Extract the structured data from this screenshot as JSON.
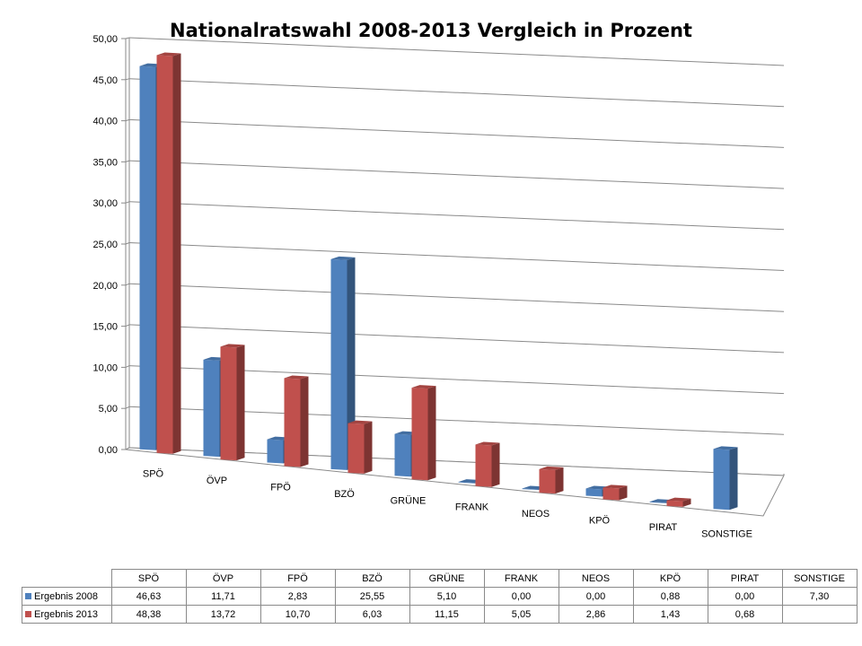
{
  "chart_data": {
    "type": "bar",
    "title": "Nationalratswahl 2008-2013 Vergleich in Prozent",
    "categories": [
      "SPÖ",
      "ÖVP",
      "FPÖ",
      "BZÖ",
      "GRÜNE",
      "FRANK",
      "NEOS",
      "KPÖ",
      "PIRAT",
      "SONSTIGE"
    ],
    "y_ticks": [
      "0,00",
      "5,00",
      "10,00",
      "15,00",
      "20,00",
      "25,00",
      "30,00",
      "35,00",
      "40,00",
      "45,00",
      "50,00"
    ],
    "ylim": [
      0,
      50
    ],
    "grid": true,
    "three_d": true,
    "legend": "data-table",
    "series": [
      {
        "name": "Ergebnis 2008",
        "color": "#4F81BD",
        "values": [
          46.63,
          11.71,
          2.83,
          25.55,
          5.1,
          0.0,
          0.0,
          0.88,
          0.0,
          7.3
        ],
        "labels": [
          "46,63",
          "11,71",
          "2,83",
          "25,55",
          "5,10",
          "0,00",
          "0,00",
          "0,88",
          "0,00",
          "7,30"
        ]
      },
      {
        "name": "Ergebnis 2013",
        "color": "#C0504D",
        "values": [
          48.38,
          13.72,
          10.7,
          6.03,
          11.15,
          5.05,
          2.86,
          1.43,
          0.68,
          null
        ],
        "labels": [
          "48,38",
          "13,72",
          "10,70",
          "6,03",
          "11,15",
          "5,05",
          "2,86",
          "1,43",
          "0,68",
          ""
        ]
      }
    ]
  }
}
